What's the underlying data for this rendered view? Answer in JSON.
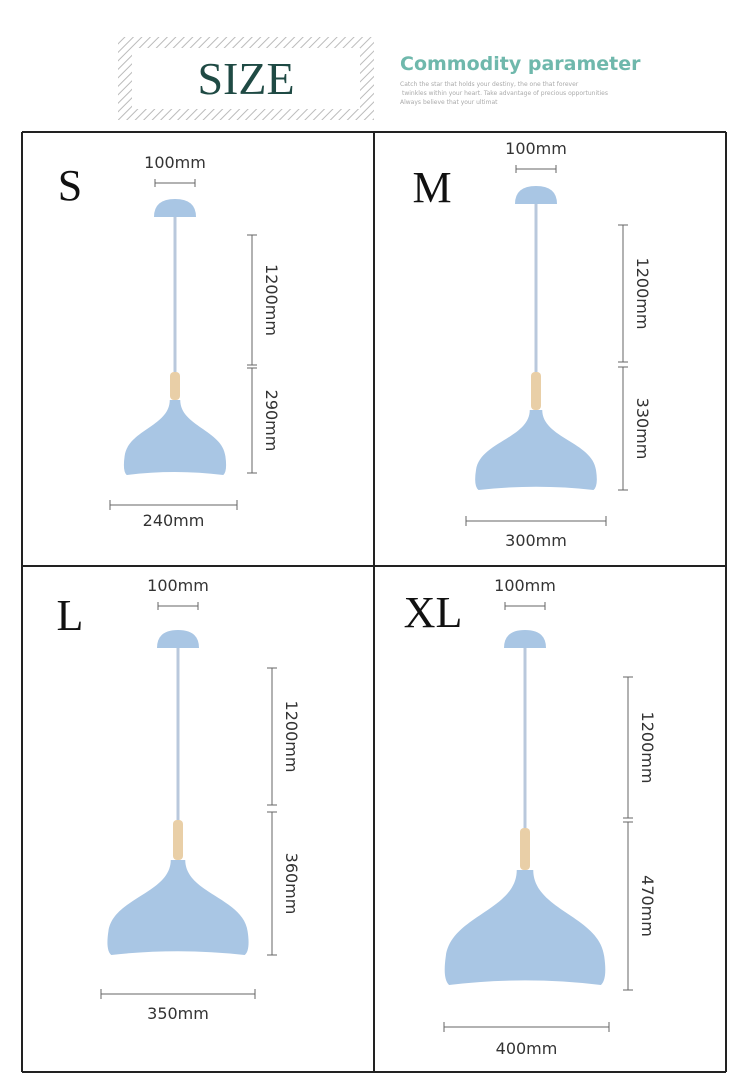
{
  "header": {
    "title": "SIZE",
    "heading": "Commodity parameter",
    "subtext": [
      "Catch the star that holds your destiny, the one that forever",
      "twinkles within your heart. Take advantage of precious opportunities",
      "Always believe that your ultimat"
    ]
  },
  "panels": [
    {
      "size": "S",
      "canopy_width": "100mm",
      "cord_length": "1200mm",
      "shade_height": "290mm",
      "shade_width": "240mm"
    },
    {
      "size": "M",
      "canopy_width": "100mm",
      "cord_length": "1200mm",
      "shade_height": "330mm",
      "shade_width": "300mm"
    },
    {
      "size": "L",
      "canopy_width": "100mm",
      "cord_length": "1200mm",
      "shade_height": "360mm",
      "shade_width": "350mm"
    },
    {
      "size": "XL",
      "canopy_width": "100mm",
      "cord_length": "1200mm",
      "shade_height": "470mm",
      "shade_width": "400mm"
    }
  ]
}
